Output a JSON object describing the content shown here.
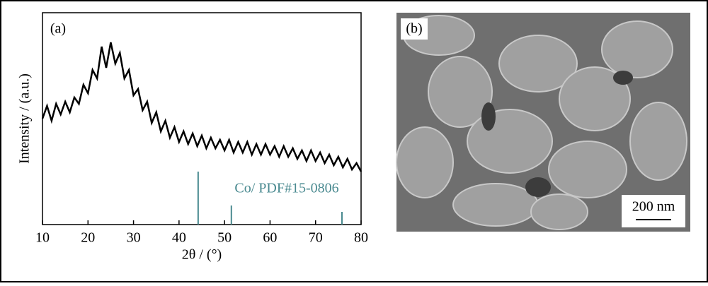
{
  "chart_data": {
    "type": "line",
    "panel_label": "(a)",
    "x_label": "2θ / (°)",
    "y_label": "Intensity / (a.u.)",
    "x": [
      10,
      11,
      12,
      13,
      14,
      15,
      16,
      17,
      18,
      19,
      20,
      21,
      22,
      23,
      24,
      25,
      26,
      27,
      28,
      29,
      30,
      31,
      32,
      33,
      34,
      35,
      36,
      37,
      38,
      39,
      40,
      41,
      42,
      43,
      44,
      45,
      46,
      47,
      48,
      49,
      50,
      51,
      52,
      53,
      54,
      55,
      56,
      57,
      58,
      59,
      60,
      61,
      62,
      63,
      64,
      65,
      66,
      67,
      68,
      69,
      70,
      71,
      72,
      73,
      74,
      75,
      76,
      77,
      78,
      79,
      80
    ],
    "values": [
      50,
      56,
      49,
      57,
      52,
      58,
      53,
      60,
      57,
      66,
      62,
      73,
      69,
      84,
      74,
      86,
      76,
      81,
      69,
      73,
      61,
      64,
      54,
      58,
      48,
      53,
      44,
      49,
      41,
      46,
      39,
      44,
      38,
      43,
      37,
      42,
      36,
      41,
      36,
      40,
      35,
      40,
      34,
      39,
      34,
      39,
      33,
      38,
      33,
      38,
      33,
      37,
      32,
      37,
      32,
      36,
      31,
      35,
      30,
      35,
      30,
      34,
      29,
      33,
      28,
      32,
      27,
      31,
      26,
      29,
      25
    ],
    "color": "#000000",
    "reference": {
      "name": "Co/ PDF#15-0806",
      "color": "#4a8a90",
      "x": [
        44.2,
        51.5,
        75.8
      ],
      "values": [
        25,
        9,
        6
      ]
    },
    "xlim": [
      10,
      80
    ],
    "xticks": [
      10,
      20,
      30,
      40,
      50,
      60,
      70,
      80
    ],
    "ylim": [
      0,
      100
    ]
  },
  "image_panel": {
    "label": "(b)",
    "scale_bar": "200 nm"
  }
}
